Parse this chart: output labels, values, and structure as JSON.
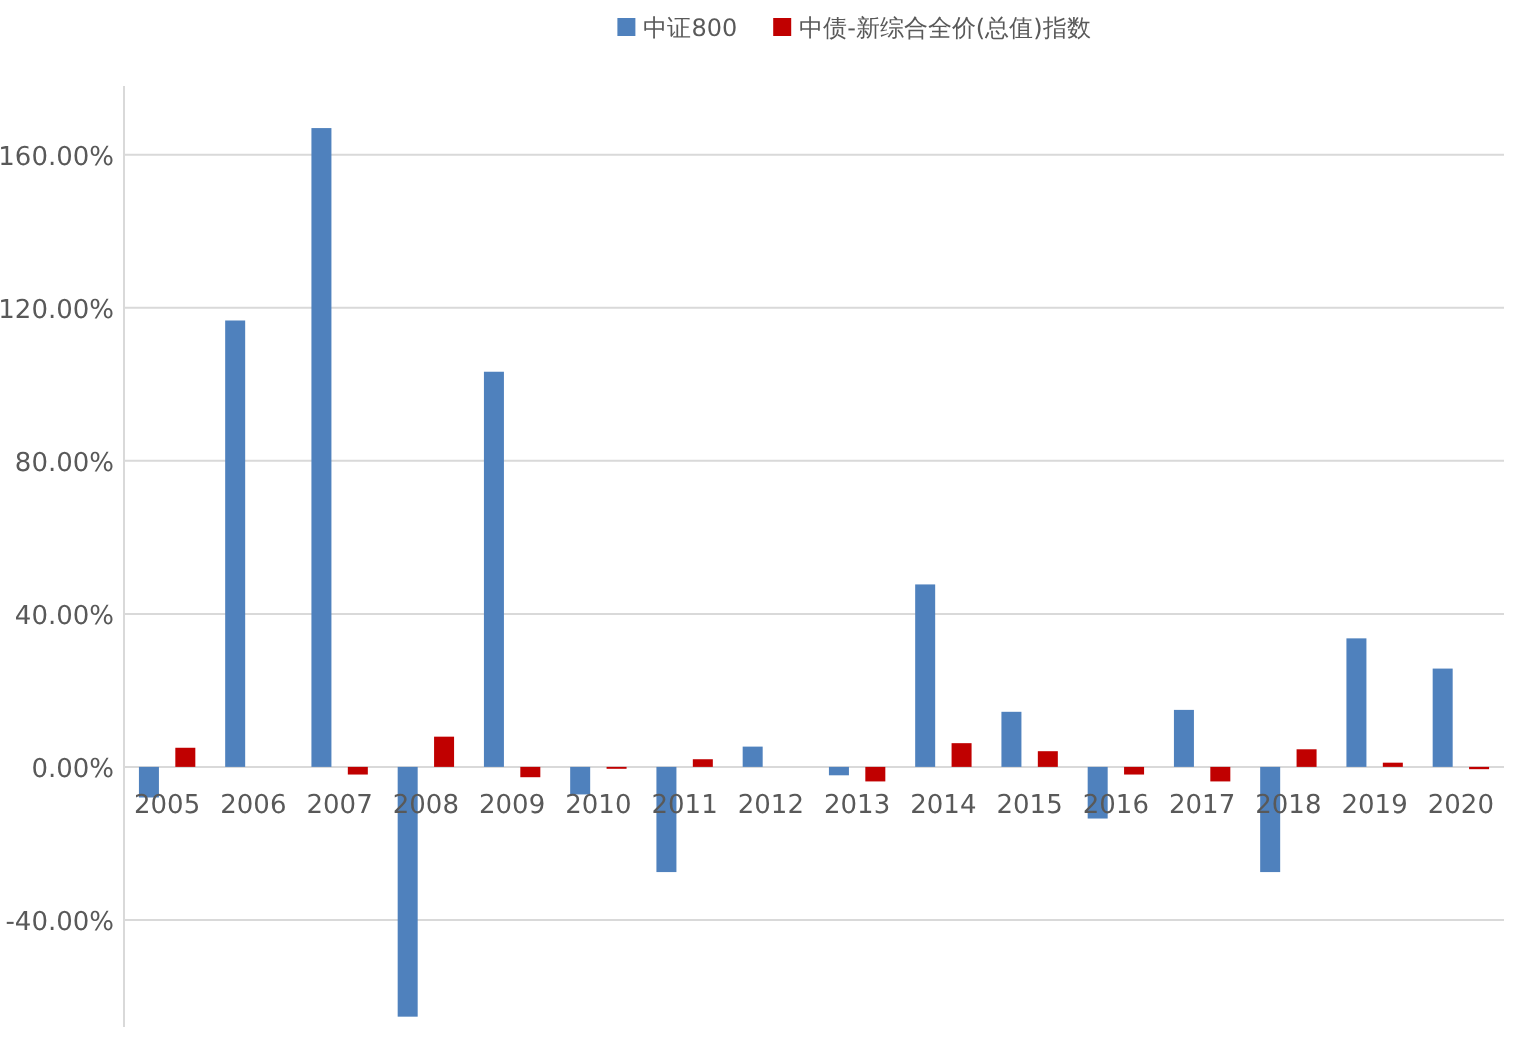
{
  "chart_data": {
    "type": "bar",
    "categories": [
      "2005",
      "2006",
      "2007",
      "2008",
      "2009",
      "2010",
      "2011",
      "2012",
      "2013",
      "2014",
      "2015",
      "2016",
      "2017",
      "2018",
      "2019",
      "2020"
    ],
    "series": [
      {
        "name": "中证800",
        "color": "#4f81bd",
        "values": [
          -8,
          116.7,
          167,
          -65.3,
          103.3,
          -7.2,
          -27.5,
          5.3,
          -2.2,
          47.7,
          14.4,
          -13.5,
          14.9,
          -27.5,
          33.6,
          25.7
        ]
      },
      {
        "name": "中债-新综合全价(总值)指数",
        "color": "#c00000",
        "values": [
          5.0,
          0,
          -2.0,
          7.9,
          -2.7,
          -0.5,
          2.0,
          0,
          -3.8,
          6.2,
          4.1,
          -2.0,
          -3.8,
          4.6,
          1.1,
          -0.6
        ]
      }
    ],
    "ylim": [
      -68,
      178
    ],
    "yticks": [
      {
        "value": -40,
        "label": "-40.00%"
      },
      {
        "value": 0,
        "label": "0.00%"
      },
      {
        "value": 40,
        "label": "40.00%"
      },
      {
        "value": 80,
        "label": "80.00%"
      },
      {
        "value": 120,
        "label": "120.00%"
      },
      {
        "value": 160,
        "label": "160.00%"
      }
    ],
    "grid": "y",
    "legend": "top"
  }
}
